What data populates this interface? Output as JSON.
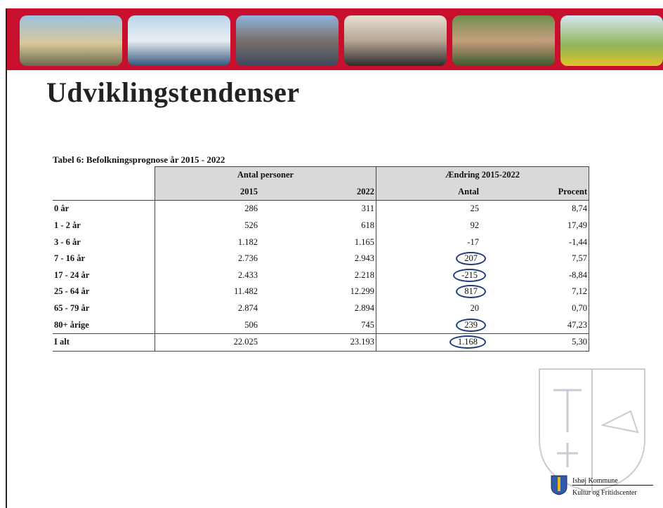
{
  "header": {
    "title": "Udviklingstendenser"
  },
  "table": {
    "caption": "Tabel 6: Befolkningsprognose år 2015 - 2022",
    "group_headers": [
      "Antal personer",
      "Ændring 2015-2022"
    ],
    "column_headers": [
      "2015",
      "2022",
      "Antal",
      "Procent"
    ],
    "rows": [
      [
        "0 år",
        "286",
        "311",
        "25",
        "8,74"
      ],
      [
        "1 - 2 år",
        "526",
        "618",
        "92",
        "17,49"
      ],
      [
        "3 - 6 år",
        "1.182",
        "1.165",
        "-17",
        "-1,44"
      ],
      [
        "7 - 16 år",
        "2.736",
        "2.943",
        "207",
        "7,57"
      ],
      [
        "17 - 24 år",
        "2.433",
        "2.218",
        "-215",
        "-8,84"
      ],
      [
        "25 - 64 år",
        "11.482",
        "12.299",
        "817",
        "7,12"
      ],
      [
        "65 - 79 år",
        "2.874",
        "2.894",
        "20",
        "0,70"
      ],
      [
        "80+ årige",
        "506",
        "745",
        "239",
        "47,23"
      ]
    ],
    "total": [
      "I alt",
      "22.025",
      "23.193",
      "1.168",
      "5,30"
    ]
  },
  "footer": {
    "logo_lines": [
      "Ishøj Kommune",
      "Kultur og Fritidscenter"
    ]
  }
}
